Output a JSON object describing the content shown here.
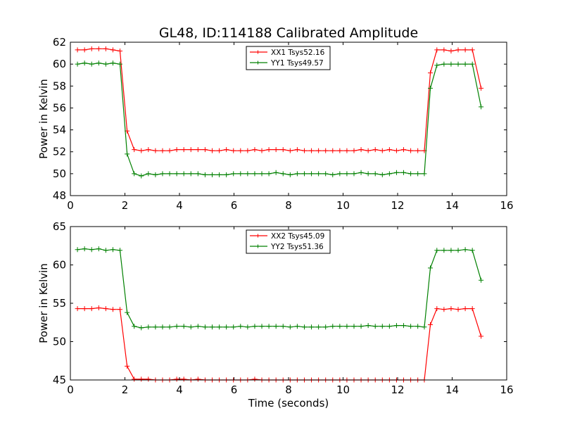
{
  "title": "GL48, ID:114188 Calibrated Amplitude",
  "colors": {
    "red": "#ff0000",
    "green": "#008000"
  },
  "chart_data": [
    {
      "type": "line",
      "xlabel": "",
      "ylabel": "Power in Kelvin",
      "xlim": [
        0,
        16
      ],
      "ylim": [
        48,
        62
      ],
      "xticks": [
        0,
        2,
        4,
        6,
        8,
        10,
        12,
        14,
        16
      ],
      "yticks": [
        48,
        50,
        52,
        54,
        56,
        58,
        60,
        62
      ],
      "grid": false,
      "legend": "top-center",
      "x": [
        0.26,
        0.52,
        0.78,
        1.04,
        1.3,
        1.56,
        1.82,
        2.08,
        2.34,
        2.6,
        2.86,
        3.12,
        3.38,
        3.64,
        3.9,
        4.16,
        4.42,
        4.68,
        4.94,
        5.2,
        5.46,
        5.72,
        5.98,
        6.24,
        6.5,
        6.76,
        7.02,
        7.28,
        7.54,
        7.8,
        8.06,
        8.32,
        8.58,
        8.84,
        9.1,
        9.36,
        9.62,
        9.88,
        10.14,
        10.4,
        10.66,
        10.92,
        11.18,
        11.44,
        11.7,
        11.96,
        12.22,
        12.48,
        12.74,
        13.0,
        13.26,
        13.52,
        13.78,
        14.04,
        14.3,
        14.56,
        14.82
      ],
      "series": [
        {
          "name": "XX1 Tsys52.16",
          "color": "#ff0000",
          "x": [
            0.26,
            0.52,
            0.78,
            1.04,
            1.3,
            1.56,
            1.82,
            2.08,
            2.34,
            2.6,
            2.86,
            3.12,
            3.38,
            3.64,
            3.9,
            4.16,
            4.42,
            4.68,
            4.94,
            5.2,
            5.46,
            5.72,
            5.98,
            6.24,
            6.5,
            6.76,
            7.02,
            7.28,
            7.54,
            7.8,
            8.06,
            8.32,
            8.58,
            8.84,
            9.1,
            9.36,
            9.62,
            9.88,
            10.14,
            10.4,
            10.66,
            10.92,
            11.18,
            11.44,
            11.7,
            11.96,
            12.22,
            12.48,
            12.74,
            12.98,
            13.2,
            13.44,
            13.7,
            13.96,
            14.22,
            14.48,
            14.74,
            15.06
          ],
          "values": [
            61.3,
            61.3,
            61.4,
            61.4,
            61.4,
            61.3,
            61.2,
            53.9,
            52.2,
            52.1,
            52.2,
            52.1,
            52.1,
            52.1,
            52.2,
            52.2,
            52.2,
            52.2,
            52.2,
            52.1,
            52.1,
            52.2,
            52.1,
            52.1,
            52.1,
            52.2,
            52.1,
            52.2,
            52.2,
            52.2,
            52.1,
            52.2,
            52.1,
            52.1,
            52.1,
            52.1,
            52.1,
            52.1,
            52.1,
            52.1,
            52.2,
            52.1,
            52.2,
            52.1,
            52.2,
            52.1,
            52.2,
            52.1,
            52.1,
            52.1,
            59.2,
            61.3,
            61.3,
            61.2,
            61.3,
            61.3,
            61.3,
            57.8
          ]
        },
        {
          "name": "YY1 Tsys49.57",
          "color": "#008000",
          "x": [
            0.26,
            0.52,
            0.78,
            1.04,
            1.3,
            1.56,
            1.82,
            2.08,
            2.34,
            2.6,
            2.86,
            3.12,
            3.38,
            3.64,
            3.9,
            4.16,
            4.42,
            4.68,
            4.94,
            5.2,
            5.46,
            5.72,
            5.98,
            6.24,
            6.5,
            6.76,
            7.02,
            7.28,
            7.54,
            7.8,
            8.06,
            8.32,
            8.58,
            8.84,
            9.1,
            9.36,
            9.62,
            9.88,
            10.14,
            10.4,
            10.66,
            10.92,
            11.18,
            11.44,
            11.7,
            11.96,
            12.22,
            12.48,
            12.74,
            12.98,
            13.2,
            13.44,
            13.7,
            13.96,
            14.22,
            14.48,
            14.74,
            15.06
          ],
          "values": [
            60.0,
            60.1,
            60.0,
            60.1,
            60.0,
            60.1,
            60.0,
            51.8,
            50.0,
            49.8,
            50.0,
            49.9,
            50.0,
            50.0,
            50.0,
            50.0,
            50.0,
            50.0,
            49.9,
            49.9,
            49.9,
            49.9,
            50.0,
            50.0,
            50.0,
            50.0,
            50.0,
            50.0,
            50.1,
            50.0,
            49.9,
            50.0,
            50.0,
            50.0,
            50.0,
            50.0,
            49.9,
            50.0,
            50.0,
            50.0,
            50.1,
            50.0,
            50.0,
            49.9,
            50.0,
            50.1,
            50.1,
            50.0,
            50.0,
            50.0,
            57.8,
            59.9,
            60.0,
            60.0,
            60.0,
            60.0,
            60.0,
            56.1
          ]
        }
      ]
    },
    {
      "type": "line",
      "xlabel": "Time (seconds)",
      "ylabel": "Power in Kelvin",
      "xlim": [
        0,
        16
      ],
      "ylim": [
        45,
        65
      ],
      "xticks": [
        0,
        2,
        4,
        6,
        8,
        10,
        12,
        14,
        16
      ],
      "yticks": [
        45,
        50,
        55,
        60,
        65
      ],
      "grid": false,
      "legend": "top-center",
      "series": [
        {
          "name": "XX2 Tsys45.09",
          "color": "#ff0000",
          "x": [
            0.26,
            0.52,
            0.78,
            1.04,
            1.3,
            1.56,
            1.82,
            2.08,
            2.34,
            2.6,
            2.86,
            3.12,
            3.38,
            3.64,
            3.9,
            4.16,
            4.42,
            4.68,
            4.94,
            5.2,
            5.46,
            5.72,
            5.98,
            6.24,
            6.5,
            6.76,
            7.02,
            7.28,
            7.54,
            7.8,
            8.06,
            8.32,
            8.58,
            8.84,
            9.1,
            9.36,
            9.62,
            9.88,
            10.14,
            10.4,
            10.66,
            10.92,
            11.18,
            11.44,
            11.7,
            11.96,
            12.22,
            12.48,
            12.74,
            12.98,
            13.2,
            13.44,
            13.7,
            13.96,
            14.22,
            14.48,
            14.74,
            15.06
          ],
          "values": [
            54.3,
            54.3,
            54.3,
            54.4,
            54.3,
            54.2,
            54.2,
            46.8,
            45.1,
            45.1,
            45.1,
            45.0,
            45.0,
            45.0,
            45.1,
            45.1,
            45.0,
            45.1,
            45.0,
            45.0,
            45.0,
            45.0,
            45.0,
            45.0,
            45.0,
            45.1,
            45.0,
            45.0,
            45.0,
            45.0,
            45.0,
            45.0,
            45.0,
            45.0,
            45.0,
            45.0,
            45.0,
            45.0,
            45.0,
            45.0,
            45.0,
            45.0,
            45.0,
            45.0,
            45.0,
            45.0,
            45.0,
            45.0,
            45.0,
            45.0,
            52.2,
            54.3,
            54.2,
            54.3,
            54.2,
            54.3,
            54.3,
            50.7
          ]
        },
        {
          "name": "YY2 Tsys51.36",
          "color": "#008000",
          "x": [
            0.26,
            0.52,
            0.78,
            1.04,
            1.3,
            1.56,
            1.82,
            2.08,
            2.34,
            2.6,
            2.86,
            3.12,
            3.38,
            3.64,
            3.9,
            4.16,
            4.42,
            4.68,
            4.94,
            5.2,
            5.46,
            5.72,
            5.98,
            6.24,
            6.5,
            6.76,
            7.02,
            7.28,
            7.54,
            7.8,
            8.06,
            8.32,
            8.58,
            8.84,
            9.1,
            9.36,
            9.62,
            9.88,
            10.14,
            10.4,
            10.66,
            10.92,
            11.18,
            11.44,
            11.7,
            11.96,
            12.22,
            12.48,
            12.74,
            12.98,
            13.2,
            13.44,
            13.7,
            13.96,
            14.22,
            14.48,
            14.74,
            15.06
          ],
          "values": [
            62.0,
            62.1,
            62.0,
            62.1,
            61.9,
            62.0,
            61.9,
            53.8,
            52.0,
            51.8,
            51.9,
            51.9,
            51.9,
            51.9,
            52.0,
            52.0,
            51.9,
            52.0,
            51.9,
            51.9,
            51.9,
            51.9,
            51.9,
            52.0,
            51.9,
            52.0,
            52.0,
            52.0,
            52.0,
            52.0,
            51.9,
            52.0,
            51.9,
            51.9,
            51.9,
            51.9,
            52.0,
            52.0,
            52.0,
            52.0,
            52.0,
            52.1,
            52.0,
            52.0,
            52.0,
            52.1,
            52.1,
            52.0,
            52.0,
            51.9,
            59.6,
            61.9,
            61.9,
            61.9,
            61.9,
            62.0,
            61.9,
            58.0
          ]
        }
      ]
    }
  ]
}
